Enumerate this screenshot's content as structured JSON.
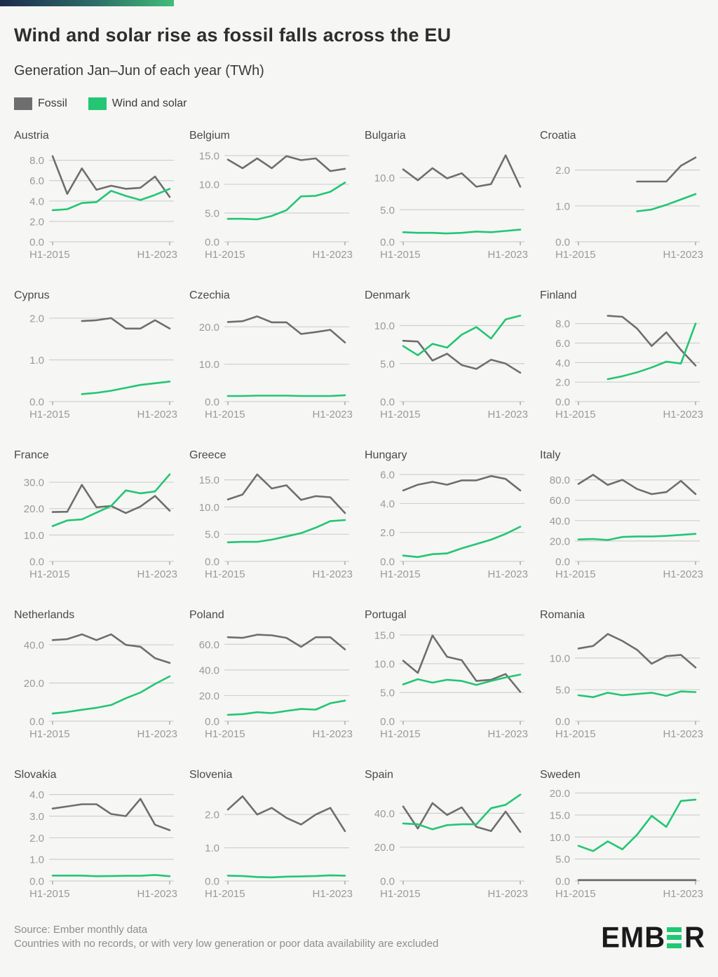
{
  "header": {
    "title": "Wind and solar rise as fossil falls across the EU",
    "subtitle": "Generation Jan–Jun of each year (TWh)"
  },
  "legend": {
    "fossil_label": "Fossil",
    "wind_label": "Wind and solar"
  },
  "colors": {
    "fossil": "#6e6e6e",
    "wind": "#22c673",
    "grid": "#cfcfcd",
    "axis_text": "#9a9a98",
    "background": "#f6f6f5",
    "topbar_left": "#1d2a4c",
    "topbar_right": "#41bd78",
    "logo_black": "#1a1a1a",
    "logo_green": "#1fc873"
  },
  "footer": {
    "source": "Source: Ember monthly data",
    "note": "Countries with no records, or with very low generation or poor data availability are excluded",
    "logo_text": "EMBER"
  },
  "chart_data": {
    "type": "line",
    "x": [
      "H1-2015",
      "H1-2016",
      "H1-2017",
      "H1-2018",
      "H1-2019",
      "H1-2020",
      "H1-2021",
      "H1-2022",
      "H1-2023"
    ],
    "x_tick_labels": [
      "H1-2015",
      "H1-2023"
    ],
    "series_names": [
      "Fossil",
      "Wind and solar"
    ],
    "grid": true,
    "legend_position": "top-left",
    "panels": [
      {
        "country": "Austria",
        "yticks": [
          0,
          2,
          4,
          6,
          8
        ],
        "ymax": 8.8,
        "fossil": [
          8.4,
          4.7,
          7.2,
          5.1,
          5.5,
          5.2,
          5.3,
          6.4,
          4.4
        ],
        "wind": [
          3.1,
          3.2,
          3.8,
          3.9,
          5.0,
          4.5,
          4.1,
          4.6,
          5.2
        ]
      },
      {
        "country": "Belgium",
        "yticks": [
          0,
          5,
          10,
          15
        ],
        "ymax": 15.6,
        "fossil": [
          14.3,
          12.8,
          14.5,
          12.8,
          14.9,
          14.2,
          14.5,
          12.3,
          12.7
        ],
        "wind": [
          4.0,
          4.0,
          3.9,
          4.5,
          5.5,
          7.9,
          8.0,
          8.7,
          10.3
        ]
      },
      {
        "country": "Bulgaria",
        "yticks": [
          0,
          5,
          10
        ],
        "ymax": 14.0,
        "fossil": [
          11.3,
          9.6,
          11.5,
          9.9,
          10.7,
          8.6,
          9.0,
          13.5,
          8.6
        ],
        "wind": [
          1.5,
          1.4,
          1.4,
          1.3,
          1.4,
          1.6,
          1.5,
          1.7,
          1.9
        ]
      },
      {
        "country": "Croatia",
        "yticks": [
          0,
          1,
          2
        ],
        "ymax": 2.5,
        "fossil": [
          null,
          null,
          null,
          null,
          1.68,
          1.68,
          1.68,
          2.12,
          2.35
        ],
        "wind": [
          null,
          null,
          null,
          null,
          0.85,
          0.9,
          1.03,
          1.18,
          1.33
        ]
      },
      {
        "country": "Cyprus",
        "yticks": [
          0,
          1,
          2
        ],
        "ymax": 2.15,
        "fossil": [
          null,
          null,
          1.93,
          1.95,
          2.0,
          1.75,
          1.75,
          1.95,
          1.75
        ],
        "wind": [
          null,
          null,
          0.18,
          0.21,
          0.26,
          0.33,
          0.4,
          0.44,
          0.48
        ]
      },
      {
        "country": "Czechia",
        "yticks": [
          0,
          10,
          20
        ],
        "ymax": 24.0,
        "fossil": [
          21.3,
          21.5,
          22.8,
          21.2,
          21.2,
          18.1,
          18.6,
          19.2,
          15.8
        ],
        "wind": [
          1.5,
          1.5,
          1.6,
          1.6,
          1.6,
          1.5,
          1.5,
          1.5,
          1.7
        ]
      },
      {
        "country": "Denmark",
        "yticks": [
          0,
          5,
          10
        ],
        "ymax": 11.8,
        "fossil": [
          8.0,
          7.9,
          5.4,
          6.3,
          4.8,
          4.3,
          5.5,
          5.0,
          3.8
        ],
        "wind": [
          7.3,
          6.1,
          7.6,
          7.1,
          8.8,
          9.8,
          8.3,
          10.8,
          11.3
        ]
      },
      {
        "country": "Finland",
        "yticks": [
          0,
          2,
          4,
          6,
          8
        ],
        "ymax": 9.2,
        "fossil": [
          null,
          null,
          8.8,
          8.7,
          7.5,
          5.7,
          7.1,
          5.3,
          3.7
        ],
        "wind": [
          null,
          null,
          2.3,
          2.6,
          3.0,
          3.5,
          4.1,
          3.9,
          8.0
        ]
      },
      {
        "country": "France",
        "yticks": [
          0,
          10,
          20,
          30
        ],
        "ymax": 34.0,
        "fossil": [
          18.7,
          18.8,
          29.0,
          20.5,
          21.0,
          18.3,
          20.8,
          24.8,
          19.2
        ],
        "wind": [
          13.4,
          15.5,
          15.9,
          18.5,
          21.0,
          26.9,
          25.8,
          26.5,
          33.0
        ]
      },
      {
        "country": "Greece",
        "yticks": [
          0,
          5,
          10,
          15
        ],
        "ymax": 16.5,
        "fossil": [
          11.4,
          12.3,
          16.0,
          13.4,
          14.0,
          11.3,
          12.0,
          11.8,
          8.9
        ],
        "wind": [
          3.5,
          3.6,
          3.6,
          4.0,
          4.6,
          5.2,
          6.2,
          7.4,
          7.6
        ]
      },
      {
        "country": "Hungary",
        "yticks": [
          0,
          2,
          4,
          6
        ],
        "ymax": 6.2,
        "fossil": [
          4.9,
          5.3,
          5.5,
          5.3,
          5.6,
          5.6,
          5.9,
          5.7,
          4.9
        ],
        "wind": [
          0.4,
          0.3,
          0.5,
          0.55,
          0.9,
          1.2,
          1.5,
          1.9,
          2.4
        ]
      },
      {
        "country": "Italy",
        "yticks": [
          0,
          20,
          40,
          60,
          80
        ],
        "ymax": 88.0,
        "fossil": [
          76,
          85,
          75,
          80,
          71,
          66,
          68,
          79,
          66
        ],
        "wind": [
          21.5,
          22,
          21,
          24,
          24.5,
          24.5,
          25,
          26,
          27
        ]
      },
      {
        "country": "Netherlands",
        "yticks": [
          0,
          20,
          40
        ],
        "ymax": 47.0,
        "fossil": [
          42.5,
          43,
          45.5,
          42.5,
          45.5,
          40,
          39,
          33,
          30.5
        ],
        "wind": [
          4,
          4.8,
          6,
          7,
          8.5,
          12,
          15,
          19.5,
          23.5
        ]
      },
      {
        "country": "Poland",
        "yticks": [
          0,
          20,
          40,
          60
        ],
        "ymax": 70.0,
        "fossil": [
          65.5,
          65,
          67.5,
          67,
          65,
          58,
          65.5,
          65.5,
          56
        ],
        "wind": [
          5,
          5.5,
          7,
          6.3,
          8,
          9.5,
          9,
          14,
          16
        ]
      },
      {
        "country": "Portugal",
        "yticks": [
          0,
          5,
          10,
          15
        ],
        "ymax": 15.6,
        "fossil": [
          10.5,
          8.4,
          14.9,
          11.2,
          10.6,
          7.0,
          7.2,
          8.2,
          5.1
        ],
        "wind": [
          6.4,
          7.3,
          6.7,
          7.2,
          7.0,
          6.3,
          7.0,
          7.6,
          8.1
        ]
      },
      {
        "country": "Romania",
        "yticks": [
          0,
          5,
          10
        ],
        "ymax": 14.2,
        "fossil": [
          11.5,
          11.9,
          13.8,
          12.7,
          11.3,
          9.1,
          10.3,
          10.5,
          8.5
        ],
        "wind": [
          4.1,
          3.8,
          4.5,
          4.1,
          4.3,
          4.5,
          4.0,
          4.7,
          4.6
        ]
      },
      {
        "country": "Slovakia",
        "yticks": [
          0,
          1,
          2,
          3,
          4
        ],
        "ymax": 4.15,
        "fossil": [
          3.35,
          3.45,
          3.55,
          3.55,
          3.1,
          3.0,
          3.8,
          2.6,
          2.35
        ],
        "wind": [
          0.25,
          0.25,
          0.25,
          0.22,
          0.23,
          0.24,
          0.24,
          0.28,
          0.22
        ]
      },
      {
        "country": "Slovenia",
        "yticks": [
          0,
          1,
          2
        ],
        "ymax": 2.7,
        "fossil": [
          2.15,
          2.55,
          2.0,
          2.2,
          1.9,
          1.7,
          2.0,
          2.2,
          1.5
        ],
        "wind": [
          0.16,
          0.15,
          0.12,
          0.11,
          0.13,
          0.14,
          0.15,
          0.17,
          0.16
        ]
      },
      {
        "country": "Spain",
        "yticks": [
          0,
          20,
          40
        ],
        "ymax": 53.0,
        "fossil": [
          44,
          31,
          46,
          39,
          43.5,
          32,
          29.5,
          41,
          29
        ],
        "wind": [
          34,
          33.5,
          30.5,
          33,
          33.5,
          33.5,
          43,
          45,
          51
        ]
      },
      {
        "country": "Sweden",
        "yticks": [
          0,
          5,
          10,
          15,
          20
        ],
        "ymax": 20.4,
        "fossil": [
          0.2,
          0.2,
          0.2,
          0.2,
          0.2,
          0.2,
          0.2,
          0.2,
          0.2
        ],
        "wind": [
          8.0,
          6.8,
          9.0,
          7.2,
          10.5,
          14.8,
          12.3,
          18.2,
          18.5
        ]
      }
    ]
  }
}
